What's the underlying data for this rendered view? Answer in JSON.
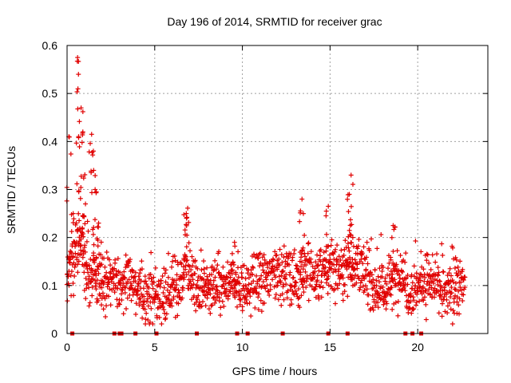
{
  "chart_data": {
    "type": "scatter",
    "title": "Day 196 of 2014, SRMTID for receiver grac",
    "xlabel": "GPS time / hours",
    "ylabel": "SRMTID / TECUs",
    "xlim": [
      0,
      24
    ],
    "ylim": [
      0,
      0.6
    ],
    "xticks": [
      0,
      5,
      10,
      15,
      20
    ],
    "yticks": [
      0,
      0.1,
      0.2,
      0.3,
      0.4,
      0.5,
      0.6
    ],
    "xtick_labels": [
      "0",
      "5",
      "10",
      "15",
      "20"
    ],
    "ytick_labels": [
      "0",
      "0.1",
      "0.2",
      "0.3",
      "0.4",
      "0.5",
      "0.6"
    ],
    "grid": true,
    "marker": "+",
    "color": "#e00000",
    "x_range_observed": [
      0,
      22.7
    ],
    "series": [
      {
        "name": "SRMTID",
        "trend_hours": [
          0,
          0.3,
          0.6,
          0.9,
          1.2,
          1.5,
          2,
          2.5,
          3,
          3.5,
          4,
          4.5,
          5,
          5.5,
          6,
          6.5,
          6.8,
          7,
          7.5,
          8,
          8.5,
          9,
          9.5,
          10,
          10.5,
          11,
          11.5,
          12,
          12.5,
          13,
          13.5,
          14,
          14.5,
          15,
          15.5,
          16,
          16.5,
          17,
          17.5,
          18,
          18.5,
          19,
          19.5,
          20,
          20.5,
          21,
          21.5,
          22,
          22.7
        ],
        "trend_values": [
          0.12,
          0.15,
          0.18,
          0.16,
          0.11,
          0.12,
          0.1,
          0.11,
          0.1,
          0.12,
          0.09,
          0.08,
          0.07,
          0.08,
          0.09,
          0.1,
          0.17,
          0.12,
          0.09,
          0.09,
          0.1,
          0.09,
          0.11,
          0.09,
          0.1,
          0.11,
          0.12,
          0.13,
          0.12,
          0.11,
          0.13,
          0.12,
          0.12,
          0.14,
          0.13,
          0.15,
          0.14,
          0.12,
          0.1,
          0.09,
          0.1,
          0.13,
          0.09,
          0.1,
          0.11,
          0.1,
          0.08,
          0.09,
          0.1
        ],
        "peaks": [
          {
            "x": 0.1,
            "y": 0.41
          },
          {
            "x": 0.35,
            "y": 0.25
          },
          {
            "x": 0.6,
            "y": 0.575
          },
          {
            "x": 0.65,
            "y": 0.54
          },
          {
            "x": 0.8,
            "y": 0.47
          },
          {
            "x": 0.9,
            "y": 0.42
          },
          {
            "x": 1.05,
            "y": 0.27
          },
          {
            "x": 1.4,
            "y": 0.415
          },
          {
            "x": 1.5,
            "y": 0.38
          },
          {
            "x": 1.6,
            "y": 0.3
          },
          {
            "x": 1.8,
            "y": 0.23
          },
          {
            "x": 6.8,
            "y": 0.25
          },
          {
            "x": 9.55,
            "y": 0.19
          },
          {
            "x": 13.4,
            "y": 0.28
          },
          {
            "x": 14.9,
            "y": 0.265
          },
          {
            "x": 16.2,
            "y": 0.33
          },
          {
            "x": 16.1,
            "y": 0.29
          },
          {
            "x": 18.6,
            "y": 0.225
          }
        ],
        "zero_markers_x": [
          0.3,
          2.7,
          3.0,
          3.1,
          3.9,
          5.1,
          7.4,
          9.7,
          10.3,
          12.3,
          14.9,
          16.0,
          19.3,
          19.7,
          20.2
        ]
      }
    ]
  }
}
